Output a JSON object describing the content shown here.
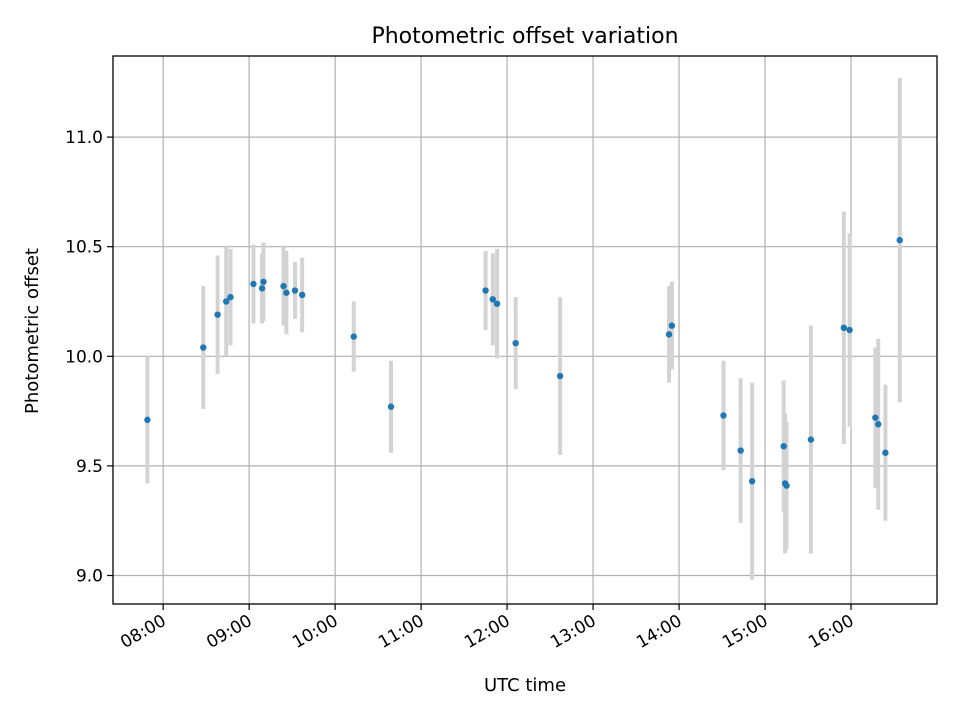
{
  "chart_data": {
    "type": "scatter",
    "title": "Photometric offset variation",
    "xlabel": "UTC time",
    "ylabel": "Photometric offset",
    "xlim": [
      "07:25",
      "17:00"
    ],
    "ylim": [
      8.87,
      11.37
    ],
    "x_ticks": [
      "08:00",
      "09:00",
      "10:00",
      "11:00",
      "12:00",
      "13:00",
      "14:00",
      "15:00",
      "16:00"
    ],
    "y_ticks": [
      9.0,
      9.5,
      10.0,
      10.5,
      11.0
    ],
    "y_tick_labels": [
      "9.0",
      "9.5",
      "10.0",
      "10.5",
      "11.0"
    ],
    "grid": true,
    "colors": {
      "point": "#1f77b4",
      "errorbar": "#d3d3d3",
      "grid": "#b0b0b0"
    },
    "points": [
      {
        "x": "07:49",
        "y": 9.71,
        "err": 0.29
      },
      {
        "x": "08:28",
        "y": 10.04,
        "err": 0.28
      },
      {
        "x": "08:38",
        "y": 10.19,
        "err": 0.27
      },
      {
        "x": "08:44",
        "y": 10.25,
        "err": 0.25
      },
      {
        "x": "08:47",
        "y": 10.27,
        "err": 0.22
      },
      {
        "x": "09:03",
        "y": 10.33,
        "err": 0.18
      },
      {
        "x": "09:09",
        "y": 10.31,
        "err": 0.16
      },
      {
        "x": "09:10",
        "y": 10.34,
        "err": 0.18
      },
      {
        "x": "09:24",
        "y": 10.32,
        "err": 0.18
      },
      {
        "x": "09:26",
        "y": 10.29,
        "err": 0.19
      },
      {
        "x": "09:32",
        "y": 10.3,
        "err": 0.13
      },
      {
        "x": "09:37",
        "y": 10.28,
        "err": 0.17
      },
      {
        "x": "10:13",
        "y": 10.09,
        "err": 0.16
      },
      {
        "x": "10:39",
        "y": 9.77,
        "err": 0.21
      },
      {
        "x": "11:45",
        "y": 10.3,
        "err": 0.18
      },
      {
        "x": "11:50",
        "y": 10.26,
        "err": 0.21
      },
      {
        "x": "11:53",
        "y": 10.24,
        "err": 0.25
      },
      {
        "x": "12:06",
        "y": 10.06,
        "err": 0.21
      },
      {
        "x": "12:37",
        "y": 9.91,
        "err": 0.36
      },
      {
        "x": "13:53",
        "y": 10.1,
        "err": 0.22
      },
      {
        "x": "13:55",
        "y": 10.14,
        "err": 0.2
      },
      {
        "x": "14:31",
        "y": 9.73,
        "err": 0.25
      },
      {
        "x": "14:43",
        "y": 9.57,
        "err": 0.33
      },
      {
        "x": "14:51",
        "y": 9.43,
        "err": 0.45
      },
      {
        "x": "15:13",
        "y": 9.59,
        "err": 0.3
      },
      {
        "x": "15:14",
        "y": 9.42,
        "err": 0.32
      },
      {
        "x": "15:15",
        "y": 9.41,
        "err": 0.29
      },
      {
        "x": "15:32",
        "y": 9.62,
        "err": 0.52
      },
      {
        "x": "15:55",
        "y": 10.13,
        "err": 0.53
      },
      {
        "x": "15:59",
        "y": 10.12,
        "err": 0.44
      },
      {
        "x": "16:17",
        "y": 9.72,
        "err": 0.32
      },
      {
        "x": "16:19",
        "y": 9.69,
        "err": 0.39
      },
      {
        "x": "16:24",
        "y": 9.56,
        "err": 0.31
      },
      {
        "x": "16:34",
        "y": 10.53,
        "err": 0.74
      }
    ]
  }
}
